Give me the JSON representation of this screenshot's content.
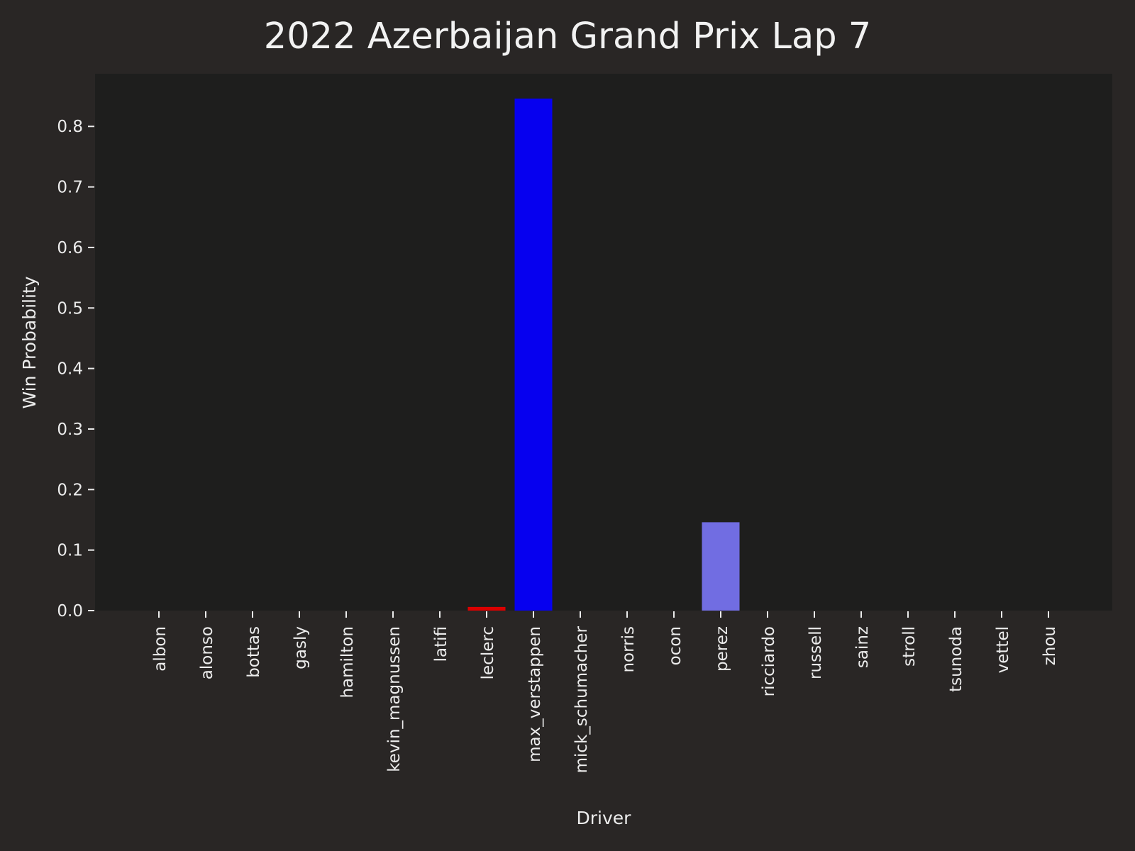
{
  "chart_data": {
    "type": "bar",
    "title": "2022 Azerbaijan Grand Prix Lap 7",
    "xlabel": "Driver",
    "ylabel": "Win Probability",
    "ylim": [
      0,
      0.887
    ],
    "yticks": [
      0.0,
      0.1,
      0.2,
      0.3,
      0.4,
      0.5,
      0.6,
      0.7,
      0.8
    ],
    "ytick_labels": [
      "0.0",
      "0.1",
      "0.2",
      "0.3",
      "0.4",
      "0.5",
      "0.6",
      "0.7",
      "0.8"
    ],
    "grid": false,
    "categories": [
      "albon",
      "alonso",
      "bottas",
      "gasly",
      "hamilton",
      "kevin_magnussen",
      "latifi",
      "leclerc",
      "max_verstappen",
      "mick_schumacher",
      "norris",
      "ocon",
      "perez",
      "ricciardo",
      "russell",
      "sainz",
      "stroll",
      "tsunoda",
      "vettel",
      "zhou"
    ],
    "values": [
      0,
      0,
      0,
      0,
      0,
      0,
      0,
      0.006,
      0.846,
      0,
      0,
      0,
      0.146,
      0,
      0,
      0,
      0,
      0,
      0,
      0
    ],
    "colors": [
      "#005aff",
      "#006f62",
      "#900000",
      "#2b4562",
      "#00d2be",
      "#ffffff",
      "#005aff",
      "#dc0000",
      "#0600ef",
      "#ffffff",
      "#ff8700",
      "#0090ff",
      "#716de2",
      "#ff8700",
      "#00d2be",
      "#dc0000",
      "#006f62",
      "#2b4562",
      "#006f62",
      "#900000"
    ]
  },
  "style": {
    "figure_bg": "#292625",
    "axes_bg": "#1e1e1d",
    "text_color": "#ececec"
  }
}
